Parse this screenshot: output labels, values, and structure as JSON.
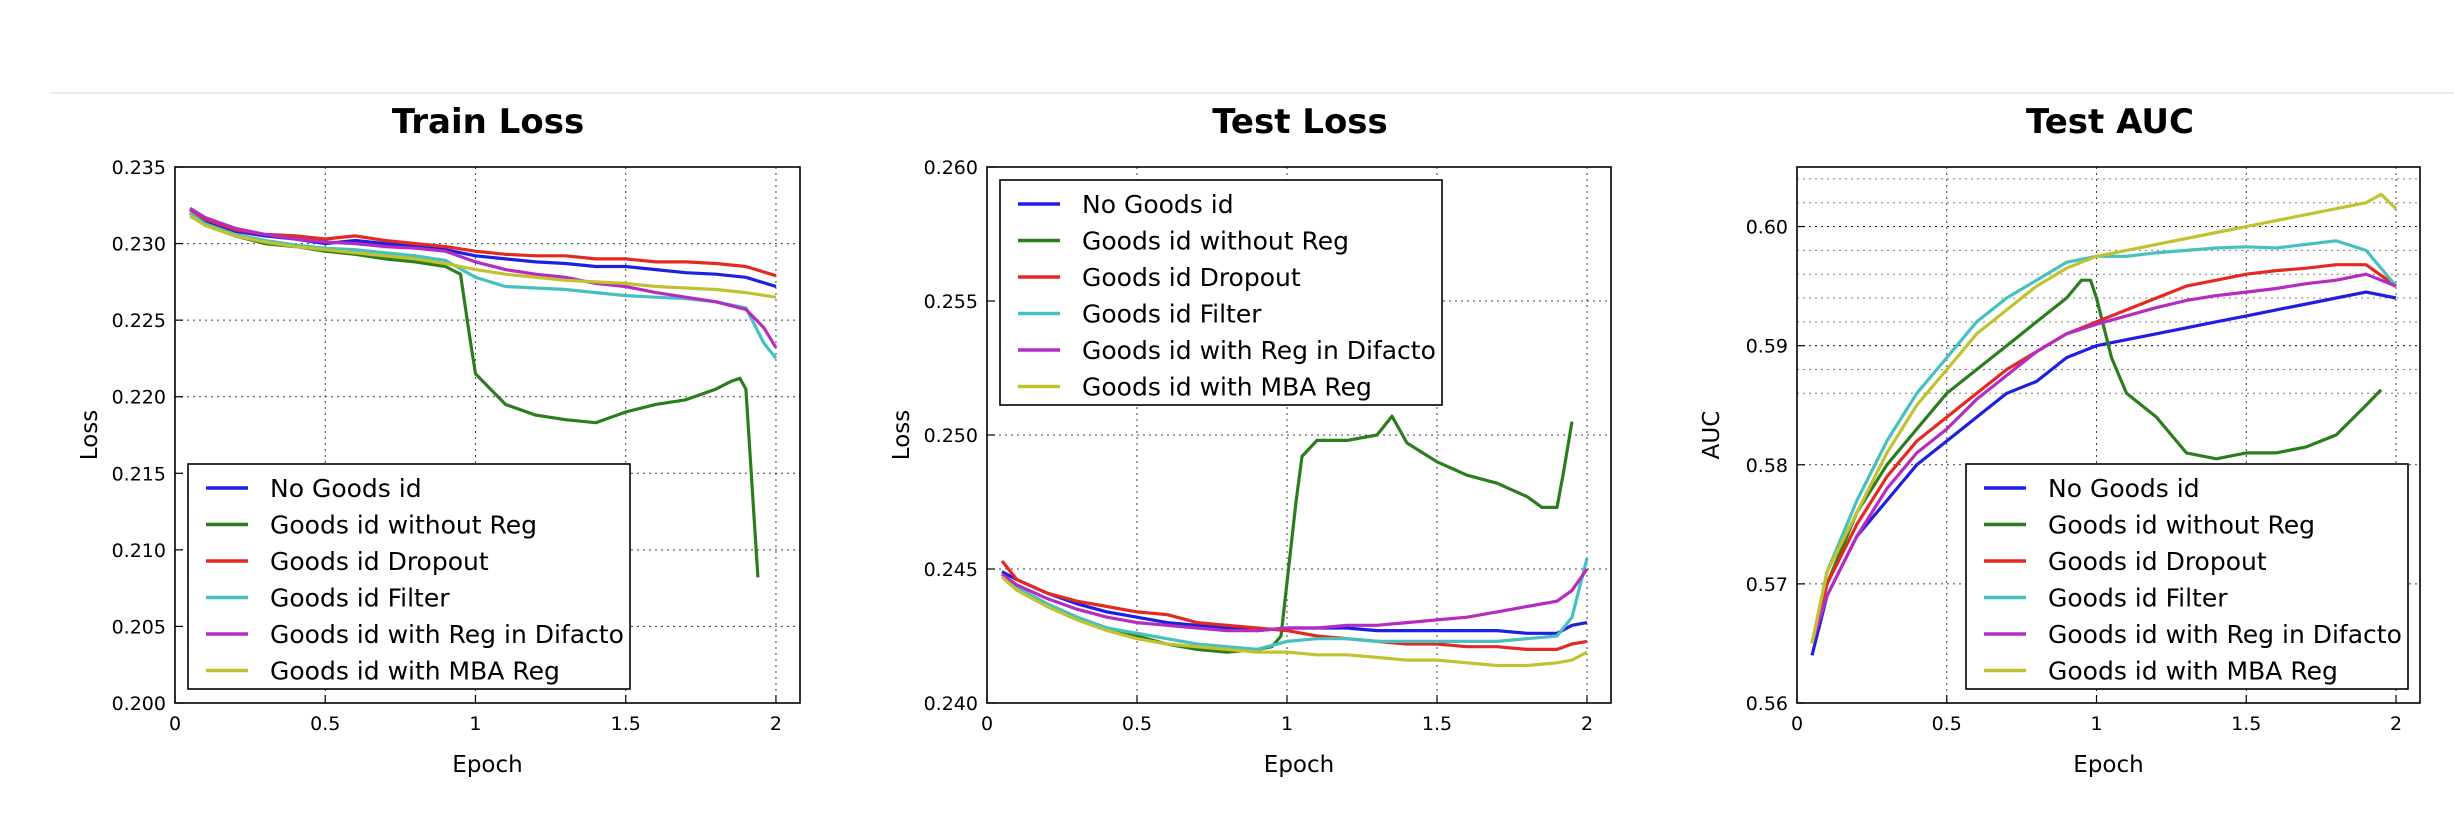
{
  "colors": {
    "No Goods id": "#1f1fe0",
    "Goods id without Reg": "#2b7d1e",
    "Goods id Dropout": "#e32a22",
    "Goods id Filter": "#47c0c0",
    "Goods id with Reg in Difacto": "#b52cc0",
    "Goods id with MBA Reg": "#c2c231"
  },
  "chart_data": [
    {
      "type": "line",
      "title": "Train Loss",
      "xlabel": "Epoch",
      "ylabel": "Loss",
      "xlim": [
        0,
        2.08
      ],
      "ylim": [
        0.2,
        0.235
      ],
      "xticks": [
        "0",
        "0.5",
        "1",
        "1.5",
        "2"
      ],
      "yticks": [
        "0.200",
        "0.205",
        "0.210",
        "0.215",
        "0.220",
        "0.225",
        "0.230",
        "0.235"
      ],
      "grid": true,
      "legend": "lower-left",
      "series": [
        {
          "name": "No Goods id",
          "x": [
            0.05,
            0.1,
            0.2,
            0.3,
            0.4,
            0.5,
            0.6,
            0.7,
            0.8,
            0.9,
            1.0,
            1.1,
            1.2,
            1.3,
            1.4,
            1.5,
            1.6,
            1.7,
            1.8,
            1.9,
            2.0
          ],
          "values": [
            0.232,
            0.2315,
            0.2308,
            0.2305,
            0.2303,
            0.23,
            0.2302,
            0.23,
            0.2298,
            0.2296,
            0.2292,
            0.229,
            0.2288,
            0.2287,
            0.2285,
            0.2285,
            0.2283,
            0.2281,
            0.228,
            0.2278,
            0.2272
          ]
        },
        {
          "name": "Goods id without Reg",
          "x": [
            0.05,
            0.1,
            0.2,
            0.3,
            0.4,
            0.5,
            0.6,
            0.7,
            0.8,
            0.9,
            0.95,
            0.98,
            1.0,
            1.05,
            1.1,
            1.2,
            1.3,
            1.4,
            1.5,
            1.6,
            1.7,
            1.8,
            1.85,
            1.88,
            1.9,
            1.94
          ],
          "values": [
            0.232,
            0.2312,
            0.2305,
            0.23,
            0.2298,
            0.2295,
            0.2293,
            0.229,
            0.2288,
            0.2285,
            0.228,
            0.224,
            0.2215,
            0.2205,
            0.2195,
            0.2188,
            0.2185,
            0.2183,
            0.219,
            0.2195,
            0.2198,
            0.2205,
            0.221,
            0.2212,
            0.2205,
            0.2082
          ]
        },
        {
          "name": "Goods id Dropout",
          "x": [
            0.05,
            0.1,
            0.2,
            0.3,
            0.4,
            0.5,
            0.6,
            0.7,
            0.8,
            0.9,
            1.0,
            1.1,
            1.2,
            1.3,
            1.4,
            1.5,
            1.6,
            1.7,
            1.8,
            1.9,
            2.0
          ],
          "values": [
            0.2322,
            0.2316,
            0.2309,
            0.2306,
            0.2305,
            0.2303,
            0.2305,
            0.2302,
            0.23,
            0.2298,
            0.2295,
            0.2293,
            0.2292,
            0.2292,
            0.229,
            0.229,
            0.2288,
            0.2288,
            0.2287,
            0.2285,
            0.2279
          ]
        },
        {
          "name": "Goods id Filter",
          "x": [
            0.05,
            0.1,
            0.2,
            0.3,
            0.4,
            0.5,
            0.6,
            0.7,
            0.8,
            0.9,
            1.0,
            1.1,
            1.2,
            1.3,
            1.4,
            1.5,
            1.6,
            1.7,
            1.8,
            1.9,
            1.96,
            2.0
          ],
          "values": [
            0.232,
            0.2313,
            0.2306,
            0.2302,
            0.2299,
            0.2297,
            0.2296,
            0.2294,
            0.2292,
            0.2289,
            0.2278,
            0.2272,
            0.2271,
            0.227,
            0.2268,
            0.2266,
            0.2265,
            0.2264,
            0.2262,
            0.2258,
            0.2235,
            0.2225
          ]
        },
        {
          "name": "Goods id with Reg in Difacto",
          "x": [
            0.05,
            0.1,
            0.2,
            0.3,
            0.4,
            0.5,
            0.6,
            0.7,
            0.8,
            0.9,
            1.0,
            1.1,
            1.2,
            1.3,
            1.4,
            1.5,
            1.6,
            1.7,
            1.8,
            1.9,
            1.96,
            2.0
          ],
          "values": [
            0.2323,
            0.2317,
            0.231,
            0.2306,
            0.2303,
            0.2301,
            0.23,
            0.2298,
            0.2297,
            0.2295,
            0.2288,
            0.2283,
            0.228,
            0.2278,
            0.2274,
            0.2272,
            0.2268,
            0.2265,
            0.2262,
            0.2257,
            0.2245,
            0.2232
          ]
        },
        {
          "name": "Goods id with MBA Reg",
          "x": [
            0.05,
            0.1,
            0.2,
            0.3,
            0.4,
            0.5,
            0.6,
            0.7,
            0.8,
            0.9,
            1.0,
            1.1,
            1.2,
            1.3,
            1.4,
            1.5,
            1.6,
            1.7,
            1.8,
            1.9,
            2.0
          ],
          "values": [
            0.2318,
            0.2312,
            0.2305,
            0.2301,
            0.2298,
            0.2296,
            0.2294,
            0.2292,
            0.229,
            0.2287,
            0.2283,
            0.228,
            0.2278,
            0.2276,
            0.2275,
            0.2274,
            0.2272,
            0.2271,
            0.227,
            0.2268,
            0.2265
          ]
        }
      ]
    },
    {
      "type": "line",
      "title": "Test Loss",
      "xlabel": "Epoch",
      "ylabel": "Loss",
      "xlim": [
        0,
        2.08
      ],
      "ylim": [
        0.24,
        0.26
      ],
      "xticks": [
        "0",
        "0.5",
        "1",
        "1.5",
        "2"
      ],
      "yticks": [
        "0.240",
        "0.245",
        "0.250",
        "0.255",
        "0.260"
      ],
      "grid": true,
      "legend": "upper-left",
      "series": [
        {
          "name": "No Goods id",
          "x": [
            0.05,
            0.1,
            0.2,
            0.3,
            0.4,
            0.5,
            0.6,
            0.7,
            0.8,
            0.9,
            1.0,
            1.1,
            1.2,
            1.3,
            1.4,
            1.5,
            1.6,
            1.7,
            1.8,
            1.9,
            1.95,
            2.0
          ],
          "values": [
            0.2449,
            0.2446,
            0.2441,
            0.2437,
            0.2434,
            0.2432,
            0.243,
            0.2429,
            0.2428,
            0.2427,
            0.2428,
            0.2428,
            0.2428,
            0.2427,
            0.2427,
            0.2427,
            0.2427,
            0.2427,
            0.2426,
            0.2426,
            0.2429,
            0.243
          ]
        },
        {
          "name": "Goods id without Reg",
          "x": [
            0.05,
            0.1,
            0.2,
            0.3,
            0.4,
            0.5,
            0.6,
            0.7,
            0.8,
            0.9,
            0.95,
            0.98,
            1.0,
            1.03,
            1.05,
            1.1,
            1.2,
            1.3,
            1.35,
            1.4,
            1.5,
            1.6,
            1.7,
            1.8,
            1.85,
            1.9,
            1.92,
            1.95
          ],
          "values": [
            0.2448,
            0.2443,
            0.2437,
            0.2432,
            0.2428,
            0.2425,
            0.2422,
            0.242,
            0.2419,
            0.242,
            0.2421,
            0.2425,
            0.2445,
            0.2475,
            0.2492,
            0.2498,
            0.2498,
            0.25,
            0.2507,
            0.2497,
            0.249,
            0.2485,
            0.2482,
            0.2477,
            0.2473,
            0.2473,
            0.2485,
            0.2505
          ]
        },
        {
          "name": "Goods id Dropout",
          "x": [
            0.05,
            0.1,
            0.2,
            0.3,
            0.4,
            0.5,
            0.6,
            0.7,
            0.8,
            0.9,
            1.0,
            1.1,
            1.2,
            1.3,
            1.4,
            1.5,
            1.6,
            1.7,
            1.8,
            1.9,
            1.95,
            2.0
          ],
          "values": [
            0.2453,
            0.2446,
            0.2441,
            0.2438,
            0.2436,
            0.2434,
            0.2433,
            0.243,
            0.2429,
            0.2428,
            0.2427,
            0.2425,
            0.2424,
            0.2423,
            0.2422,
            0.2422,
            0.2421,
            0.2421,
            0.242,
            0.242,
            0.2422,
            0.2423
          ]
        },
        {
          "name": "Goods id Filter",
          "x": [
            0.05,
            0.1,
            0.2,
            0.3,
            0.4,
            0.5,
            0.6,
            0.7,
            0.8,
            0.9,
            1.0,
            1.1,
            1.2,
            1.3,
            1.4,
            1.5,
            1.6,
            1.7,
            1.8,
            1.9,
            1.95,
            2.0
          ],
          "values": [
            0.2447,
            0.2443,
            0.2437,
            0.2432,
            0.2428,
            0.2426,
            0.2424,
            0.2422,
            0.2421,
            0.242,
            0.2423,
            0.2424,
            0.2424,
            0.2423,
            0.2423,
            0.2423,
            0.2423,
            0.2423,
            0.2424,
            0.2425,
            0.2432,
            0.2454
          ]
        },
        {
          "name": "Goods id with Reg in Difacto",
          "x": [
            0.05,
            0.1,
            0.2,
            0.3,
            0.4,
            0.5,
            0.6,
            0.7,
            0.8,
            0.9,
            1.0,
            1.1,
            1.2,
            1.3,
            1.4,
            1.5,
            1.6,
            1.7,
            1.8,
            1.9,
            1.95,
            2.0
          ],
          "values": [
            0.2448,
            0.2444,
            0.2439,
            0.2435,
            0.2432,
            0.243,
            0.2429,
            0.2428,
            0.2427,
            0.2427,
            0.2428,
            0.2428,
            0.2429,
            0.2429,
            0.243,
            0.2431,
            0.2432,
            0.2434,
            0.2436,
            0.2438,
            0.2442,
            0.245
          ]
        },
        {
          "name": "Goods id with MBA Reg",
          "x": [
            0.05,
            0.1,
            0.2,
            0.3,
            0.4,
            0.5,
            0.6,
            0.7,
            0.8,
            0.9,
            1.0,
            1.1,
            1.2,
            1.3,
            1.4,
            1.5,
            1.6,
            1.7,
            1.8,
            1.9,
            1.95,
            2.0
          ],
          "values": [
            0.2447,
            0.2442,
            0.2436,
            0.2431,
            0.2427,
            0.2424,
            0.2422,
            0.2421,
            0.242,
            0.2419,
            0.2419,
            0.2418,
            0.2418,
            0.2417,
            0.2416,
            0.2416,
            0.2415,
            0.2414,
            0.2414,
            0.2415,
            0.2416,
            0.2419
          ]
        }
      ]
    },
    {
      "type": "line",
      "title": "Test   AUC",
      "xlabel": "Epoch",
      "ylabel": "AUC",
      "xlim": [
        0,
        2.08
      ],
      "ylim": [
        0.56,
        0.605
      ],
      "xticks": [
        "0",
        "0.5",
        "1",
        "1.5",
        "2"
      ],
      "yticks": [
        "0.56",
        "0.57",
        "0.58",
        "0.59",
        "0.60"
      ],
      "grid": true,
      "legend": "lower-right",
      "series": [
        {
          "name": "No Goods id",
          "x": [
            0.05,
            0.1,
            0.2,
            0.3,
            0.4,
            0.5,
            0.6,
            0.7,
            0.8,
            0.9,
            1.0,
            1.1,
            1.2,
            1.3,
            1.4,
            1.5,
            1.6,
            1.7,
            1.8,
            1.9,
            2.0
          ],
          "values": [
            0.564,
            0.569,
            0.574,
            0.577,
            0.58,
            0.582,
            0.584,
            0.586,
            0.587,
            0.589,
            0.59,
            0.5905,
            0.591,
            0.5915,
            0.592,
            0.5925,
            0.593,
            0.5935,
            0.594,
            0.5945,
            0.594
          ]
        },
        {
          "name": "Goods id without Reg",
          "x": [
            0.05,
            0.1,
            0.2,
            0.3,
            0.4,
            0.5,
            0.6,
            0.7,
            0.8,
            0.9,
            0.95,
            0.98,
            1.0,
            1.05,
            1.1,
            1.2,
            1.3,
            1.4,
            1.5,
            1.6,
            1.7,
            1.8,
            1.9,
            1.95
          ],
          "values": [
            0.565,
            0.57,
            0.576,
            0.58,
            0.583,
            0.586,
            0.588,
            0.59,
            0.592,
            0.594,
            0.5955,
            0.5955,
            0.594,
            0.589,
            0.586,
            0.584,
            0.581,
            0.5805,
            0.581,
            0.581,
            0.5815,
            0.5825,
            0.585,
            0.5863
          ]
        },
        {
          "name": "Goods id Dropout",
          "x": [
            0.05,
            0.1,
            0.2,
            0.3,
            0.4,
            0.5,
            0.6,
            0.7,
            0.8,
            0.9,
            1.0,
            1.1,
            1.2,
            1.3,
            1.4,
            1.5,
            1.6,
            1.7,
            1.8,
            1.9,
            2.0
          ],
          "values": [
            0.565,
            0.57,
            0.575,
            0.579,
            0.582,
            0.584,
            0.586,
            0.588,
            0.5895,
            0.591,
            0.592,
            0.593,
            0.594,
            0.595,
            0.5955,
            0.596,
            0.5963,
            0.5965,
            0.5968,
            0.5968,
            0.595
          ]
        },
        {
          "name": "Goods id Filter",
          "x": [
            0.05,
            0.1,
            0.2,
            0.3,
            0.4,
            0.5,
            0.6,
            0.7,
            0.8,
            0.9,
            1.0,
            1.1,
            1.2,
            1.3,
            1.4,
            1.5,
            1.6,
            1.7,
            1.8,
            1.9,
            2.0
          ],
          "values": [
            0.565,
            0.571,
            0.577,
            0.582,
            0.586,
            0.589,
            0.592,
            0.594,
            0.5955,
            0.597,
            0.5975,
            0.5975,
            0.5978,
            0.598,
            0.5982,
            0.5983,
            0.5982,
            0.5985,
            0.5988,
            0.598,
            0.595
          ]
        },
        {
          "name": "Goods id with Reg in Difacto",
          "x": [
            0.05,
            0.1,
            0.2,
            0.3,
            0.4,
            0.5,
            0.6,
            0.7,
            0.8,
            0.9,
            1.0,
            1.1,
            1.2,
            1.3,
            1.4,
            1.5,
            1.6,
            1.7,
            1.8,
            1.9,
            2.0
          ],
          "values": [
            0.565,
            0.569,
            0.574,
            0.578,
            0.581,
            0.583,
            0.5855,
            0.5875,
            0.5895,
            0.591,
            0.5918,
            0.5925,
            0.5932,
            0.5938,
            0.5942,
            0.5945,
            0.5948,
            0.5952,
            0.5955,
            0.596,
            0.595
          ]
        },
        {
          "name": "Goods id with MBA Reg",
          "x": [
            0.05,
            0.1,
            0.2,
            0.3,
            0.4,
            0.5,
            0.6,
            0.7,
            0.8,
            0.9,
            1.0,
            1.1,
            1.2,
            1.3,
            1.4,
            1.5,
            1.6,
            1.7,
            1.8,
            1.9,
            1.95,
            2.0
          ],
          "values": [
            0.565,
            0.571,
            0.576,
            0.581,
            0.585,
            0.588,
            0.591,
            0.593,
            0.595,
            0.5965,
            0.5975,
            0.598,
            0.5985,
            0.599,
            0.5995,
            0.6,
            0.6005,
            0.601,
            0.6015,
            0.602,
            0.6027,
            0.6015
          ]
        }
      ]
    }
  ]
}
